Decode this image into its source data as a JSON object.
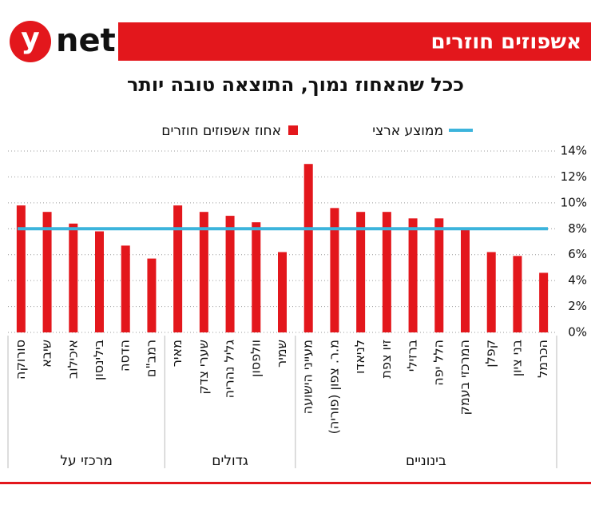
{
  "brand": {
    "circle": "y",
    "word": "net"
  },
  "chart_data": {
    "type": "bar",
    "title": "אשפוזים חוזרים",
    "subtitle": "ככל שהאחוז נמוך, התוצאה טובה יותר",
    "series_name": "אחוז אשפוזים חוזרים",
    "color": "#e3171c",
    "average": {
      "name": "ממוצע ארצי",
      "value": 8,
      "color": "#3cb4dc"
    },
    "groups": [
      {
        "label": "מרכזי על",
        "categories": [
          "סורוקה",
          "שיבא",
          "איכילוב",
          "בילינסון",
          "הדסה",
          "רמב\"ם"
        ],
        "values": [
          9.8,
          9.3,
          8.4,
          7.8,
          6.7,
          5.7
        ]
      },
      {
        "label": "גדולים",
        "categories": [
          "מאיר",
          "שערי צדק",
          "גליל נהריה",
          "וולפסון",
          "שמיר"
        ],
        "values": [
          9.8,
          9.3,
          9.0,
          8.5,
          6.2
        ]
      },
      {
        "label": "בינוניים",
        "categories": [
          "מעייני הישועה",
          "מ.ר. צפון (פוריה)",
          "לניאדו",
          "זיו צפת",
          "ברזילי",
          "הלל יפה",
          "המרכזי בעמק",
          "קפלן",
          "בני ציון",
          "הכרמל"
        ],
        "values": [
          13.0,
          9.6,
          9.3,
          9.3,
          8.8,
          8.8,
          7.9,
          6.2,
          5.9,
          4.6
        ]
      }
    ],
    "ylim": [
      0,
      14
    ],
    "yticks": [
      {
        "value": 0,
        "label": "0%"
      },
      {
        "value": 2,
        "label": "2%"
      },
      {
        "value": 4,
        "label": "4%"
      },
      {
        "value": 6,
        "label": "6%"
      },
      {
        "value": 8,
        "label": "8%"
      },
      {
        "value": 10,
        "label": "10%"
      },
      {
        "value": 12,
        "label": "12%"
      },
      {
        "value": 14,
        "label": "14%"
      }
    ],
    "grid": true
  }
}
